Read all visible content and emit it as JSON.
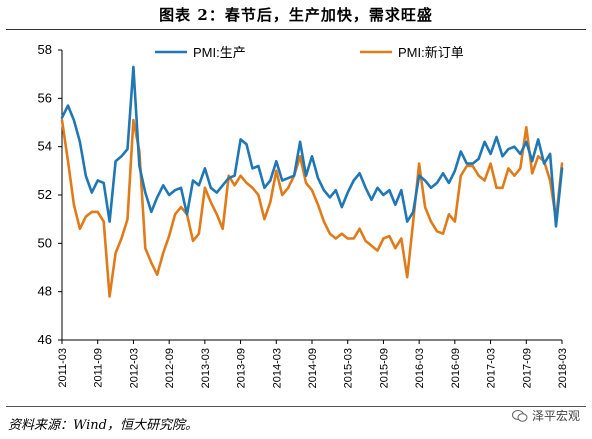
{
  "title": "图表 2：春节后，生产加快，需求旺盛",
  "source": "资料来源：Wind，恒大研究院。",
  "watermark": "泽平宏观",
  "chart_data": {
    "type": "line",
    "title": "图表 2：春节后，生产加快，需求旺盛",
    "xlabel": "",
    "ylabel": "",
    "ylim": [
      46,
      58
    ],
    "yticks": [
      46,
      48,
      50,
      52,
      54,
      56,
      58
    ],
    "x_tick_labels": [
      "2011-03",
      "2011-09",
      "2012-03",
      "2012-09",
      "2013-03",
      "2013-09",
      "2014-03",
      "2014-09",
      "2015-03",
      "2015-09",
      "2016-03",
      "2016-09",
      "2017-03",
      "2017-09",
      "2018-03"
    ],
    "grid": false,
    "legend": "top",
    "x": [
      "2011-03",
      "2011-04",
      "2011-05",
      "2011-06",
      "2011-07",
      "2011-08",
      "2011-09",
      "2011-10",
      "2011-11",
      "2011-12",
      "2012-01",
      "2012-02",
      "2012-03",
      "2012-04",
      "2012-05",
      "2012-06",
      "2012-07",
      "2012-08",
      "2012-09",
      "2012-10",
      "2012-11",
      "2012-12",
      "2013-01",
      "2013-02",
      "2013-03",
      "2013-04",
      "2013-05",
      "2013-06",
      "2013-07",
      "2013-08",
      "2013-09",
      "2013-10",
      "2013-11",
      "2013-12",
      "2014-01",
      "2014-02",
      "2014-03",
      "2014-04",
      "2014-05",
      "2014-06",
      "2014-07",
      "2014-08",
      "2014-09",
      "2014-10",
      "2014-11",
      "2014-12",
      "2015-01",
      "2015-02",
      "2015-03",
      "2015-04",
      "2015-05",
      "2015-06",
      "2015-07",
      "2015-08",
      "2015-09",
      "2015-10",
      "2015-11",
      "2015-12",
      "2016-01",
      "2016-02",
      "2016-03",
      "2016-04",
      "2016-05",
      "2016-06",
      "2016-07",
      "2016-08",
      "2016-09",
      "2016-10",
      "2016-11",
      "2016-12",
      "2017-01",
      "2017-02",
      "2017-03",
      "2017-04",
      "2017-05",
      "2017-06",
      "2017-07",
      "2017-08",
      "2017-09",
      "2017-10",
      "2017-11",
      "2017-12",
      "2018-01",
      "2018-02",
      "2018-03"
    ],
    "series": [
      {
        "name": "PMI:生产",
        "color": "#1f77b4",
        "values": [
          55.2,
          55.7,
          55.1,
          54.2,
          52.8,
          52.1,
          52.6,
          52.5,
          50.9,
          53.4,
          53.6,
          53.9,
          57.3,
          53.2,
          52.1,
          51.3,
          51.9,
          52.4,
          52.0,
          52.2,
          52.3,
          51.2,
          52.6,
          52.4,
          53.1,
          52.3,
          52.1,
          52.4,
          52.7,
          52.8,
          54.3,
          54.1,
          53.1,
          53.2,
          52.3,
          52.6,
          53.4,
          52.6,
          52.7,
          52.8,
          54.2,
          52.8,
          53.6,
          52.7,
          52.2,
          51.9,
          52.2,
          51.5,
          52.1,
          52.6,
          52.9,
          52.3,
          51.8,
          52.3,
          52.0,
          52.2,
          51.6,
          52.2,
          50.9,
          51.3,
          52.8,
          52.6,
          52.3,
          52.5,
          52.9,
          52.5,
          53.0,
          53.8,
          53.3,
          53.3,
          53.5,
          54.2,
          53.7,
          54.4,
          53.6,
          53.9,
          54.0,
          53.7,
          54.2,
          53.4,
          54.3,
          53.3,
          53.7,
          50.7,
          53.1
        ]
      },
      {
        "name": "PMI:新订单",
        "color": "#e07b1a",
        "values": [
          55.1,
          53.4,
          51.6,
          50.6,
          51.1,
          51.3,
          51.3,
          50.9,
          47.8,
          49.6,
          50.2,
          51.0,
          55.1,
          53.8,
          49.8,
          49.2,
          48.7,
          49.6,
          50.3,
          51.2,
          51.5,
          51.2,
          50.1,
          50.4,
          52.3,
          51.7,
          51.2,
          50.6,
          52.8,
          52.4,
          52.8,
          52.5,
          52.3,
          52.0,
          51.0,
          51.7,
          53.0,
          52.0,
          52.3,
          52.8,
          53.6,
          52.5,
          52.2,
          51.6,
          50.9,
          50.4,
          50.2,
          50.4,
          50.2,
          50.2,
          50.6,
          50.1,
          49.9,
          49.7,
          50.2,
          50.3,
          49.8,
          50.2,
          48.6,
          50.9,
          53.3,
          51.5,
          50.9,
          50.5,
          50.4,
          51.2,
          50.9,
          52.8,
          53.2,
          53.2,
          52.8,
          52.6,
          53.3,
          52.3,
          52.3,
          53.1,
          52.8,
          53.1,
          54.8,
          52.9,
          53.6,
          53.4,
          52.6,
          51.0,
          53.3
        ]
      }
    ]
  }
}
